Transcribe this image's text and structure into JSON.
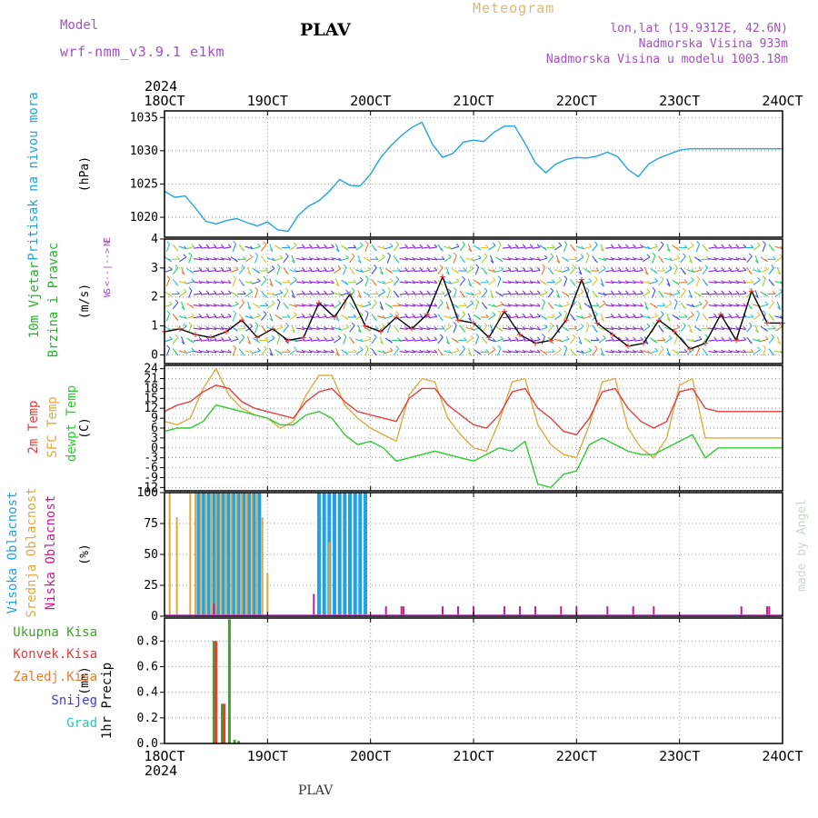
{
  "header": {
    "title": "PLAV",
    "model_label": "Model",
    "model_name": "wrf-nmm_v3.9.1 e1km",
    "meteogram_label": "Meteogram",
    "info_lines": [
      "lon,lat (19.9312E, 42.6N)",
      "Nadmorska Visina 933m",
      "Nadmorska Visina u modelu 1003.18m"
    ]
  },
  "footer": {
    "station": "PLAV"
  },
  "watermark": "made by Angel",
  "time_axis": {
    "year": "2024",
    "ticks": [
      "18OCT",
      "19OCT",
      "20OCT",
      "21OCT",
      "22OCT",
      "23OCT",
      "24OCT"
    ]
  },
  "colors": {
    "pressure": "#1fa3e8",
    "wind_speed": "#000000",
    "wind_gust_marker": "#e8343c",
    "temp2m": "#e83b3b",
    "sfc_temp": "#e0a940",
    "dewpt": "#2ecc2e",
    "cloud_high": "#1fa3e8",
    "cloud_mid": "#e0a940",
    "cloud_low": "#d01a8c",
    "precip_total": "#3fa32a",
    "precip_conv": "#e83b3b",
    "precip_strat": "#f07a2a",
    "precip_snow": "#3c3ce0",
    "precip_graupel": "#2ec8c0",
    "label_purple": "#a44ec8",
    "label_green": "#23b623"
  },
  "chart_data": [
    {
      "type": "line",
      "panel": "pressure",
      "ylabel_lines": [
        "Pritisak na nivou mora"
      ],
      "unit": "(hPa)",
      "ylim": [
        1017,
        1036
      ],
      "yticks": [
        1020,
        1025,
        1030,
        1035
      ],
      "x": [
        0,
        0.1,
        0.2,
        0.3,
        0.4,
        0.5,
        0.6,
        0.7,
        0.8,
        0.9,
        1.0,
        1.1,
        1.2,
        1.3,
        1.4,
        1.5,
        1.6,
        1.7,
        1.8,
        1.9,
        2.0,
        2.1,
        2.2,
        2.3,
        2.4,
        2.5,
        2.6,
        2.7,
        2.8,
        2.9,
        3.0,
        3.1,
        3.2,
        3.3,
        3.4,
        3.5,
        3.6,
        3.7,
        3.8,
        3.9,
        4.0,
        4.1,
        4.2,
        4.3,
        4.4,
        4.5,
        4.6,
        4.7,
        4.8,
        4.9,
        5.0,
        5.1,
        5.2,
        5.3,
        5.4,
        5.5,
        5.6,
        5.7,
        5.8,
        5.9,
        6.0
      ],
      "series": [
        {
          "values": [
            1023.9,
            1023.0,
            1023.2,
            1021.4,
            1019.4,
            1019.0,
            1019.5,
            1019.8,
            1019.2,
            1018.7,
            1019.3,
            1018.1,
            1017.9,
            1020.3,
            1021.7,
            1022.5,
            1023.9,
            1025.7,
            1024.8,
            1024.7,
            1026.5,
            1029.0,
            1030.8,
            1032.3,
            1033.5,
            1034.3,
            1031.0,
            1029.0,
            1029.6,
            1031.3,
            1031.6,
            1031.4,
            1032.8,
            1033.7,
            1033.7,
            1031.1,
            1028.2,
            1026.7,
            1028.0,
            1028.7,
            1029.0,
            1028.9,
            1029.2,
            1029.8,
            1029.1,
            1027.2,
            1026.1,
            1028.0,
            1028.9,
            1029.5,
            1030.1,
            1030.3,
            1030.3,
            1030.3,
            1030.3,
            1030.3,
            1030.3,
            1030.3,
            1030.3,
            1030.3,
            1030.3
          ]
        }
      ]
    },
    {
      "type": "line",
      "panel": "wind",
      "ylabel_lines": [
        "10m Vjetar",
        "Brzina i Pravac"
      ],
      "unit": "(m/s)",
      "ylim": [
        -0.3,
        4
      ],
      "yticks": [
        0,
        1,
        2,
        3,
        4
      ],
      "compass_label": [
        "N",
        "W <--|--> E",
        "S"
      ],
      "direction_rows": [
        0.1,
        0.5,
        0.9,
        1.3,
        1.7,
        2.1,
        2.5,
        2.9,
        3.3,
        3.7
      ],
      "x": [
        0,
        0.15,
        0.3,
        0.45,
        0.6,
        0.75,
        0.9,
        1.05,
        1.2,
        1.35,
        1.5,
        1.65,
        1.8,
        1.95,
        2.1,
        2.25,
        2.4,
        2.55,
        2.7,
        2.85,
        3.0,
        3.15,
        3.3,
        3.45,
        3.6,
        3.75,
        3.9,
        4.05,
        4.2,
        4.35,
        4.5,
        4.65,
        4.8,
        4.95,
        5.1,
        5.25,
        5.4,
        5.55,
        5.7,
        5.85,
        6.0
      ],
      "series": [
        {
          "values": [
            0.8,
            0.9,
            0.7,
            0.6,
            0.8,
            1.2,
            0.6,
            0.9,
            0.5,
            0.6,
            1.8,
            1.3,
            2.1,
            1.0,
            0.8,
            1.3,
            0.9,
            1.4,
            2.7,
            1.2,
            1.1,
            0.6,
            1.5,
            0.7,
            0.4,
            0.5,
            1.2,
            2.6,
            1.1,
            0.7,
            0.3,
            0.4,
            1.2,
            0.8,
            0.2,
            0.4,
            1.4,
            0.5,
            2.2,
            1.1,
            1.1
          ]
        }
      ]
    },
    {
      "type": "line",
      "panel": "temperature",
      "ylabel_lines": [
        "2m Temp",
        "SFC Temp",
        "dewpt Temp"
      ],
      "unit": "(C)",
      "ylim": [
        -13,
        25
      ],
      "yticks": [
        -12,
        -9,
        -6,
        -3,
        0,
        3,
        6,
        9,
        12,
        15,
        18,
        21,
        24
      ],
      "x": [
        0,
        0.125,
        0.25,
        0.375,
        0.5,
        0.625,
        0.75,
        0.875,
        1.0,
        1.125,
        1.25,
        1.375,
        1.5,
        1.625,
        1.75,
        1.875,
        2.0,
        2.125,
        2.25,
        2.375,
        2.5,
        2.625,
        2.75,
        2.875,
        3.0,
        3.125,
        3.25,
        3.375,
        3.5,
        3.625,
        3.75,
        3.875,
        4.0,
        4.125,
        4.25,
        4.375,
        4.5,
        4.625,
        4.75,
        4.875,
        5.0,
        5.125,
        5.25,
        5.375,
        5.5,
        5.625,
        5.75,
        5.875,
        6.0
      ],
      "series": [
        {
          "name": "2m Temp",
          "values": [
            11,
            13,
            14,
            17,
            19,
            18,
            14,
            12,
            11,
            10,
            9,
            14,
            17,
            18,
            14,
            11,
            10,
            9,
            8,
            15,
            18,
            18,
            13,
            10,
            7,
            6,
            10,
            17,
            18,
            12,
            9,
            5,
            4,
            9,
            17,
            18,
            12,
            8,
            6,
            8,
            17,
            18,
            12,
            11,
            11,
            11,
            11,
            11,
            11
          ]
        },
        {
          "name": "SFC Temp",
          "values": [
            8,
            7,
            9,
            18,
            24,
            16,
            12,
            10,
            9,
            6,
            8,
            16,
            22,
            22,
            13,
            9,
            6,
            4,
            2,
            16,
            21,
            20,
            9,
            4,
            0,
            -1,
            8,
            20,
            21,
            7,
            1,
            -2,
            -3,
            7,
            20,
            21,
            6,
            0,
            -3,
            3,
            19,
            21,
            3,
            3,
            3,
            3,
            3,
            3,
            3
          ]
        },
        {
          "name": "dewpt Temp",
          "values": [
            5,
            6,
            6,
            8,
            13,
            12,
            11,
            10,
            9,
            7,
            7,
            10,
            11,
            9,
            4,
            1,
            2,
            0,
            -4,
            -3,
            -2,
            -1,
            -2,
            -3,
            -4,
            -2,
            0,
            -1,
            2,
            -11,
            -12,
            -8,
            -7,
            1,
            3,
            1,
            -1,
            -2,
            -2,
            0,
            2,
            4,
            -3,
            0,
            0,
            0,
            0,
            0,
            0
          ]
        }
      ]
    },
    {
      "type": "bar",
      "panel": "clouds",
      "ylabel_lines": [
        "Visoka Oblacnost",
        "Srednja Oblacnost",
        "Niska Oblacnost"
      ],
      "unit": "(%)",
      "ylim": [
        0,
        100
      ],
      "yticks": [
        0,
        25,
        50,
        75,
        100
      ],
      "series": [
        {
          "name": "Visoka Oblacnost",
          "x": [
            0.33,
            0.38,
            0.43,
            0.48,
            0.52,
            0.57,
            0.62,
            0.67,
            0.72,
            0.77,
            0.82,
            0.87,
            0.92,
            1.5,
            1.55,
            1.6,
            1.65,
            1.7,
            1.75,
            1.8,
            1.85,
            1.9,
            1.95
          ],
          "values": [
            100,
            100,
            100,
            100,
            100,
            100,
            100,
            100,
            100,
            100,
            100,
            100,
            100,
            100,
            100,
            100,
            100,
            100,
            100,
            100,
            100,
            100,
            100
          ]
        },
        {
          "name": "Srednja Oblacnost",
          "x": [
            0.05,
            0.12,
            0.25,
            0.3,
            0.35,
            0.4,
            0.45,
            0.5,
            0.55,
            0.6,
            0.65,
            0.7,
            0.75,
            0.8,
            0.85,
            0.9,
            0.95,
            1.0,
            1.6
          ],
          "values": [
            100,
            80,
            100,
            100,
            100,
            100,
            100,
            100,
            100,
            100,
            100,
            100,
            100,
            100,
            100,
            100,
            80,
            35,
            60
          ]
        },
        {
          "name": "Niska Oblacnost",
          "x": [
            0.48,
            1.45,
            2.15,
            2.3,
            2.32,
            2.7,
            2.85,
            3.0,
            3.3,
            3.45,
            3.6,
            3.85,
            4.0,
            4.3,
            4.55,
            4.75,
            5.6,
            5.85,
            5.87
          ],
          "values": [
            10,
            18,
            8,
            8,
            8,
            8,
            8,
            8,
            8,
            8,
            8,
            8,
            8,
            8,
            8,
            8,
            8,
            8,
            8
          ]
        }
      ]
    },
    {
      "type": "bar",
      "panel": "precip",
      "ylabel_lines": [
        "1hr Precip"
      ],
      "unit": "(mm)",
      "legend": [
        "Ukupna Kisa",
        "Konvek.Kisa",
        "Zaledj.Kisa",
        "Snijeg",
        "Grad"
      ],
      "ylim": [
        0,
        0.98
      ],
      "yticks": [
        0,
        0.2,
        0.4,
        0.6,
        0.8
      ],
      "series": [
        {
          "name": "Ukupna Kisa",
          "x": [
            0.48,
            0.56,
            0.63,
            0.68,
            0.72
          ],
          "values": [
            0.8,
            0.31,
            0.97,
            0.03,
            0.02
          ]
        },
        {
          "name": "Konvek.Kisa",
          "x": [
            0.5,
            0.58
          ],
          "values": [
            0.8,
            0.31
          ]
        }
      ]
    }
  ]
}
